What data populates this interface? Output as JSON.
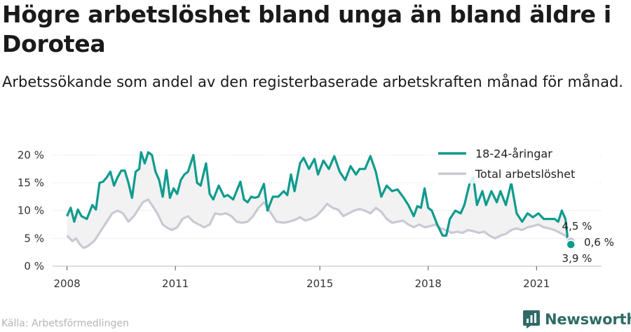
{
  "header": {
    "title": "Högre arbetslöshet bland unga än bland äldre i Dorotea",
    "subtitle": "Arbetssökande som andel av den registerbaserade arbetskraften månad för månad."
  },
  "footer": {
    "source": "Källa: Arbetsförmedlingen",
    "brand": "Newsworthy"
  },
  "colors": {
    "youth": "#0f9b8e",
    "total": "#c9c9d4",
    "band": "#f2f2f2",
    "grid": "#e3e3e3",
    "brand": "#2f6b64"
  },
  "chart_data": {
    "type": "line",
    "x_axis": {
      "range": [
        2007.6,
        2022.8
      ],
      "ticks": [
        2008,
        2011,
        2015,
        2018,
        2021
      ],
      "tick_labels": [
        "2008",
        "2011",
        "2015",
        "2018",
        "2021"
      ]
    },
    "y_axis": {
      "range": [
        0,
        20.8
      ],
      "ticks": [
        0,
        5,
        10,
        15,
        20
      ],
      "tick_labels": [
        "0 %",
        "5 %",
        "10 %",
        "15 %",
        "20 %"
      ]
    },
    "grid": true,
    "legend_position": "top-right",
    "fill_between_series": true,
    "series": [
      {
        "name": "18-24-åringar",
        "x": [
          2008.0,
          2008.1,
          2008.2,
          2008.3,
          2008.4,
          2008.55,
          2008.7,
          2008.8,
          2008.9,
          2009.0,
          2009.1,
          2009.2,
          2009.3,
          2009.4,
          2009.5,
          2009.6,
          2009.7,
          2009.8,
          2009.9,
          2010.0,
          2010.05,
          2010.15,
          2010.25,
          2010.35,
          2010.45,
          2010.55,
          2010.65,
          2010.75,
          2010.85,
          2010.95,
          2011.05,
          2011.15,
          2011.25,
          2011.35,
          2011.5,
          2011.6,
          2011.7,
          2011.85,
          2011.95,
          2012.05,
          2012.2,
          2012.35,
          2012.45,
          2012.6,
          2012.8,
          2012.9,
          2013.0,
          2013.1,
          2013.2,
          2013.3,
          2013.45,
          2013.55,
          2013.7,
          2013.85,
          2014.0,
          2014.1,
          2014.2,
          2014.3,
          2014.45,
          2014.55,
          2014.7,
          2014.85,
          2014.95,
          2015.1,
          2015.25,
          2015.4,
          2015.55,
          2015.7,
          2015.85,
          2016.0,
          2016.1,
          2016.25,
          2016.4,
          2016.55,
          2016.7,
          2016.85,
          2017.0,
          2017.15,
          2017.3,
          2017.45,
          2017.6,
          2017.7,
          2017.8,
          2017.9,
          2018.0,
          2018.1,
          2018.25,
          2018.4,
          2018.5,
          2018.6,
          2018.75,
          2018.9,
          2019.0,
          2019.15,
          2019.25,
          2019.35,
          2019.5,
          2019.6,
          2019.75,
          2019.9,
          2020.0,
          2020.15,
          2020.3,
          2020.45,
          2020.6,
          2020.75,
          2020.9,
          2021.05,
          2021.2,
          2021.35,
          2021.5,
          2021.6,
          2021.7,
          2021.8,
          2021.87,
          2021.95
        ],
        "values": [
          9.0,
          10.5,
          8.0,
          10.2,
          9.0,
          8.5,
          11.0,
          10.2,
          15.0,
          15.2,
          16.0,
          17.0,
          14.5,
          16.0,
          17.2,
          17.2,
          15.0,
          12.3,
          17.0,
          17.5,
          20.5,
          18.5,
          20.5,
          20.0,
          17.0,
          15.5,
          12.5,
          17.3,
          12.3,
          14.0,
          13.0,
          15.5,
          16.5,
          17.0,
          20.0,
          15.0,
          14.5,
          18.5,
          13.0,
          12.0,
          14.5,
          12.5,
          12.8,
          12.0,
          15.2,
          12.0,
          11.5,
          12.5,
          12.3,
          12.5,
          14.8,
          10.0,
          12.5,
          12.5,
          13.5,
          12.8,
          16.5,
          13.5,
          18.5,
          19.5,
          17.5,
          19.3,
          16.5,
          19.0,
          17.5,
          19.8,
          17.0,
          15.5,
          18.0,
          16.5,
          17.5,
          17.5,
          19.8,
          17.0,
          12.5,
          14.5,
          13.5,
          13.8,
          12.5,
          11.0,
          9.0,
          10.8,
          10.5,
          14.0,
          10.5,
          10.0,
          7.5,
          5.5,
          5.5,
          8.5,
          10.0,
          9.5,
          11.0,
          15.0,
          16.0,
          11.0,
          13.5,
          11.0,
          13.5,
          11.5,
          13.5,
          11.0,
          15.0,
          9.5,
          8.0,
          9.5,
          8.8,
          9.5,
          8.5,
          8.5,
          8.5,
          8.0,
          10.0,
          8.5,
          4.5,
          3.9
        ]
      },
      {
        "name": "Total arbetslöshet",
        "x": [
          2008.0,
          2008.15,
          2008.25,
          2008.35,
          2008.45,
          2008.55,
          2008.65,
          2008.75,
          2008.85,
          2008.95,
          2009.1,
          2009.25,
          2009.4,
          2009.55,
          2009.7,
          2009.85,
          2010.0,
          2010.1,
          2010.25,
          2010.35,
          2010.5,
          2010.65,
          2010.75,
          2010.9,
          2011.05,
          2011.2,
          2011.35,
          2011.5,
          2011.65,
          2011.8,
          2011.95,
          2012.1,
          2012.25,
          2012.4,
          2012.55,
          2012.7,
          2012.85,
          2013.0,
          2013.15,
          2013.3,
          2013.45,
          2013.6,
          2013.8,
          2014.0,
          2014.15,
          2014.3,
          2014.45,
          2014.6,
          2014.75,
          2014.9,
          2015.05,
          2015.2,
          2015.35,
          2015.5,
          2015.65,
          2015.8,
          2015.95,
          2016.1,
          2016.25,
          2016.4,
          2016.55,
          2016.7,
          2016.85,
          2017.0,
          2017.15,
          2017.3,
          2017.45,
          2017.6,
          2017.75,
          2017.9,
          2018.05,
          2018.2,
          2018.35,
          2018.5,
          2018.65,
          2018.8,
          2018.95,
          2019.1,
          2019.25,
          2019.4,
          2019.55,
          2019.7,
          2019.85,
          2020.0,
          2020.15,
          2020.3,
          2020.45,
          2020.6,
          2020.75,
          2020.9,
          2021.05,
          2021.2,
          2021.35,
          2021.5,
          2021.65,
          2021.8,
          2021.87,
          2021.95
        ],
        "values": [
          5.5,
          4.5,
          5.0,
          4.0,
          3.3,
          3.5,
          4.0,
          4.5,
          5.5,
          6.5,
          8.0,
          9.5,
          10.0,
          9.5,
          8.0,
          9.0,
          10.5,
          11.5,
          12.0,
          11.0,
          9.5,
          7.5,
          7.0,
          6.5,
          7.0,
          8.5,
          9.0,
          8.0,
          7.5,
          7.0,
          7.5,
          9.5,
          9.3,
          9.5,
          9.0,
          8.0,
          7.8,
          8.0,
          9.0,
          10.5,
          11.5,
          10.0,
          8.0,
          7.8,
          8.0,
          8.3,
          8.8,
          8.2,
          8.5,
          9.0,
          10.0,
          11.2,
          10.5,
          10.2,
          9.0,
          9.5,
          10.0,
          10.3,
          10.0,
          9.5,
          10.5,
          9.8,
          8.5,
          7.8,
          8.0,
          8.2,
          7.5,
          7.0,
          7.5,
          7.0,
          7.2,
          7.5,
          6.8,
          6.5,
          6.0,
          6.2,
          6.0,
          6.5,
          6.3,
          6.0,
          6.2,
          5.5,
          5.0,
          5.5,
          5.8,
          6.5,
          6.8,
          6.5,
          7.0,
          7.2,
          7.5,
          7.0,
          6.8,
          6.5,
          6.0,
          5.5,
          4.9,
          4.5
        ]
      }
    ],
    "annotations": [
      "4,5 %",
      "0,6 %",
      "3,9 %"
    ]
  }
}
